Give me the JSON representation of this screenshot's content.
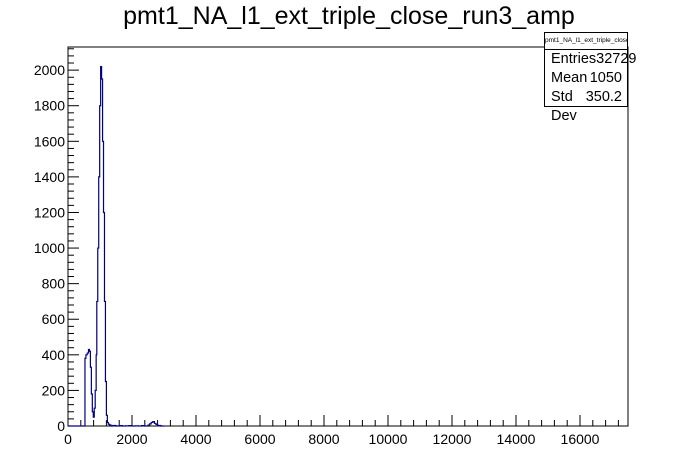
{
  "chart_data": {
    "type": "histogram",
    "title": "pmt1_NA_l1_ext_triple_close_run3_amp",
    "xlim": [
      0,
      17500
    ],
    "ylim": [
      0,
      2130
    ],
    "x_ticks": [
      0,
      2000,
      4000,
      6000,
      8000,
      10000,
      12000,
      14000,
      16000
    ],
    "y_ticks": [
      0,
      200,
      400,
      600,
      800,
      1000,
      1200,
      1400,
      1600,
      1800,
      2000
    ],
    "line_color": "#000080",
    "stats_box": {
      "title": "pmt1_NA_l1_ext_triple_close_run3_amp",
      "rows": [
        {
          "label": "Entries",
          "value": "32729"
        },
        {
          "label": "Mean",
          "value": "1050"
        },
        {
          "label": "Std Dev",
          "value": "350.2"
        }
      ]
    },
    "series": [
      {
        "x": [
          0,
          500,
          530,
          560,
          600,
          640,
          670,
          700,
          730,
          760,
          790,
          820,
          850,
          880,
          900,
          930,
          960,
          990,
          1020,
          1050,
          1080,
          1110,
          1140,
          1170,
          1200,
          1230,
          1260,
          1300,
          1350,
          1400,
          1500,
          1600,
          1700,
          1800,
          1900,
          2000,
          2100,
          2200,
          2300,
          2400,
          2500,
          2550,
          2600,
          2650,
          2700,
          2750,
          2800,
          2900,
          3000
        ],
        "y": [
          0,
          0,
          380,
          400,
          410,
          430,
          420,
          330,
          180,
          80,
          50,
          100,
          200,
          400,
          700,
          1000,
          1400,
          1800,
          2020,
          1950,
          1600,
          1200,
          700,
          250,
          60,
          20,
          10,
          5,
          0,
          3,
          0,
          2,
          0,
          1,
          2,
          0,
          1,
          0,
          2,
          0,
          5,
          12,
          20,
          25,
          15,
          8,
          3,
          0,
          0
        ]
      }
    ]
  }
}
